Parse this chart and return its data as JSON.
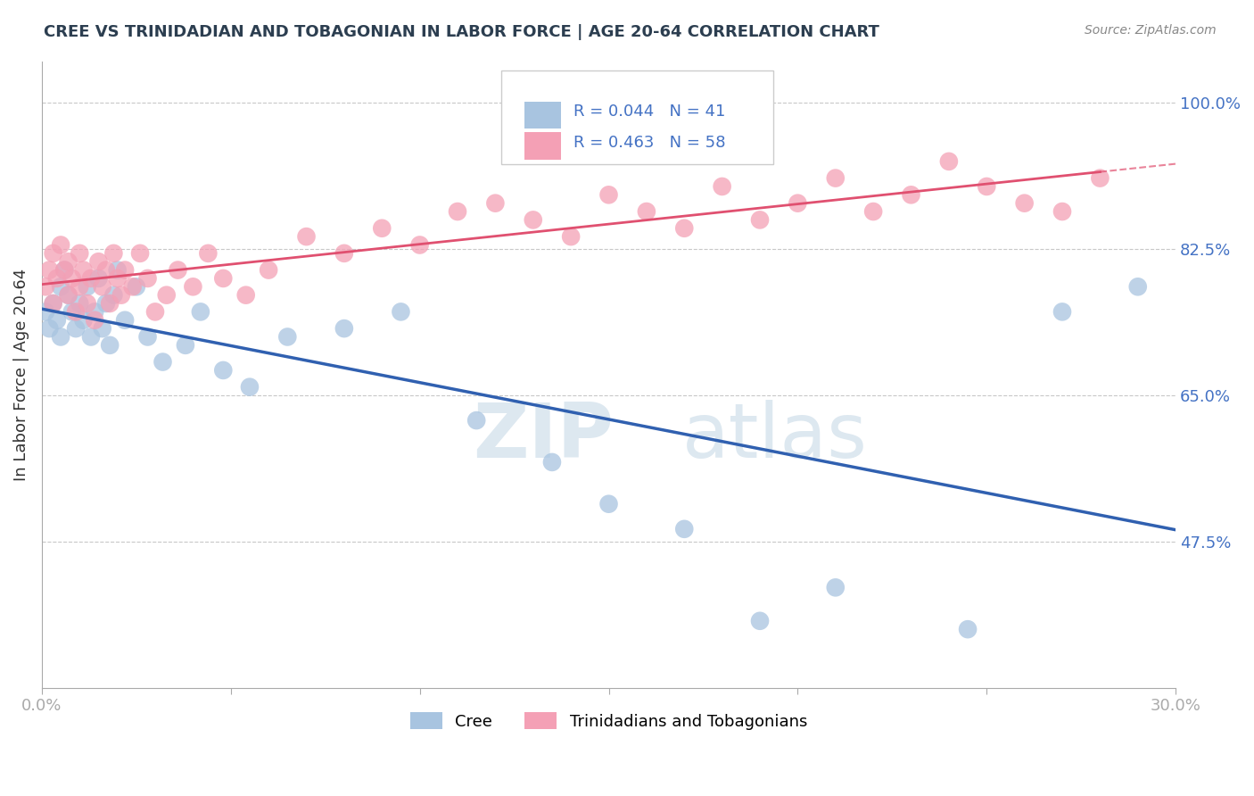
{
  "title": "CREE VS TRINIDADIAN AND TOBAGONIAN IN LABOR FORCE | AGE 20-64 CORRELATION CHART",
  "source_text": "Source: ZipAtlas.com",
  "ylabel": "In Labor Force | Age 20-64",
  "xlim": [
    0.0,
    0.3
  ],
  "ylim": [
    0.3,
    1.05
  ],
  "xticks": [
    0.0,
    0.05,
    0.1,
    0.15,
    0.2,
    0.25,
    0.3
  ],
  "xticklabels": [
    "0.0%",
    "",
    "",
    "",
    "",
    "",
    "30.0%"
  ],
  "yticks": [
    0.475,
    0.65,
    0.825,
    1.0
  ],
  "yticklabels": [
    "47.5%",
    "65.0%",
    "82.5%",
    "100.0%"
  ],
  "grid_color": "#c8c8c8",
  "background_color": "#ffffff",
  "axis_color": "#4472c4",
  "legend_r1": "R = 0.044",
  "legend_n1": "N = 41",
  "legend_r2": "R = 0.463",
  "legend_n2": "N = 58",
  "cree_color": "#a8c4e0",
  "trini_color": "#f4a0b5",
  "cree_line_color": "#3060b0",
  "trini_line_color": "#e05070",
  "cree_x": [
    0.001,
    0.002,
    0.003,
    0.004,
    0.005,
    0.005,
    0.006,
    0.007,
    0.008,
    0.009,
    0.01,
    0.011,
    0.012,
    0.013,
    0.014,
    0.015,
    0.016,
    0.017,
    0.018,
    0.019,
    0.02,
    0.022,
    0.025,
    0.028,
    0.032,
    0.038,
    0.042,
    0.048,
    0.055,
    0.065,
    0.08,
    0.095,
    0.115,
    0.135,
    0.15,
    0.17,
    0.19,
    0.21,
    0.245,
    0.27,
    0.29
  ],
  "cree_y": [
    0.75,
    0.73,
    0.76,
    0.74,
    0.78,
    0.72,
    0.8,
    0.77,
    0.75,
    0.73,
    0.76,
    0.74,
    0.78,
    0.72,
    0.75,
    0.79,
    0.73,
    0.76,
    0.71,
    0.77,
    0.8,
    0.74,
    0.78,
    0.72,
    0.69,
    0.71,
    0.75,
    0.68,
    0.66,
    0.72,
    0.73,
    0.75,
    0.62,
    0.57,
    0.52,
    0.49,
    0.38,
    0.42,
    0.37,
    0.75,
    0.78
  ],
  "trini_x": [
    0.001,
    0.002,
    0.003,
    0.003,
    0.004,
    0.005,
    0.006,
    0.007,
    0.007,
    0.008,
    0.009,
    0.01,
    0.01,
    0.011,
    0.012,
    0.013,
    0.014,
    0.015,
    0.016,
    0.017,
    0.018,
    0.019,
    0.02,
    0.021,
    0.022,
    0.024,
    0.026,
    0.028,
    0.03,
    0.033,
    0.036,
    0.04,
    0.044,
    0.048,
    0.054,
    0.06,
    0.07,
    0.08,
    0.09,
    0.1,
    0.11,
    0.12,
    0.13,
    0.14,
    0.15,
    0.16,
    0.17,
    0.18,
    0.19,
    0.2,
    0.21,
    0.22,
    0.23,
    0.24,
    0.25,
    0.26,
    0.27,
    0.28
  ],
  "trini_y": [
    0.78,
    0.8,
    0.82,
    0.76,
    0.79,
    0.83,
    0.8,
    0.77,
    0.81,
    0.79,
    0.75,
    0.82,
    0.78,
    0.8,
    0.76,
    0.79,
    0.74,
    0.81,
    0.78,
    0.8,
    0.76,
    0.82,
    0.79,
    0.77,
    0.8,
    0.78,
    0.82,
    0.79,
    0.75,
    0.77,
    0.8,
    0.78,
    0.82,
    0.79,
    0.77,
    0.8,
    0.84,
    0.82,
    0.85,
    0.83,
    0.87,
    0.88,
    0.86,
    0.84,
    0.89,
    0.87,
    0.85,
    0.9,
    0.86,
    0.88,
    0.91,
    0.87,
    0.89,
    0.93,
    0.9,
    0.88,
    0.87,
    0.91
  ]
}
